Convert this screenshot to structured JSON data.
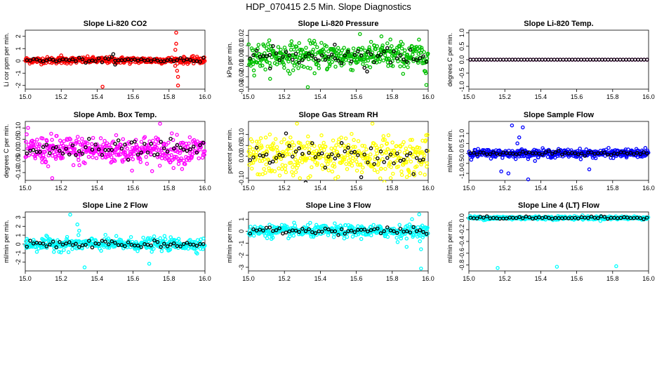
{
  "figure": {
    "title": "HDP_070415  2.5 Min. Slope Diagnostics"
  },
  "chart_data": [
    {
      "type": "scatter",
      "title": "Slope Li-820 CO2",
      "xlabel": "",
      "ylabel": "Li cor ppm per min.",
      "xlim": [
        15.0,
        16.0
      ],
      "ylim": [
        -2.3,
        2.5
      ],
      "xticks": [
        "15.0",
        "15.2",
        "15.4",
        "15.6",
        "15.8",
        "16.0"
      ],
      "yticks": [
        "-2",
        "-1",
        "0",
        "1",
        "2"
      ],
      "color": "#ff0000",
      "series": [
        {
          "name": "scan",
          "color": "#ff0000",
          "n": 420,
          "center": 0.05,
          "spread": 0.13,
          "outliers": [
            {
              "x": 15.43,
              "y": -2.1
            },
            {
              "x": 15.84,
              "y": 2.3
            },
            {
              "x": 15.84,
              "y": 1.4
            },
            {
              "x": 15.845,
              "y": -0.8
            },
            {
              "x": 15.85,
              "y": -1.3
            },
            {
              "x": 15.85,
              "y": -2.0
            },
            {
              "x": 15.835,
              "y": 0.9
            },
            {
              "x": 15.2,
              "y": 0.45
            }
          ]
        },
        {
          "name": "mean",
          "color": "#000000",
          "n": 55,
          "center": 0.05,
          "spread": 0.1,
          "outliers": [
            {
              "x": 15.49,
              "y": 0.55
            },
            {
              "x": 15.5,
              "y": -0.3
            }
          ]
        }
      ]
    },
    {
      "type": "scatter",
      "title": "Slope Li-820 Pressure",
      "xlabel": "",
      "ylabel": "kPa per min.",
      "xlim": [
        15.0,
        16.0
      ],
      "ylim": [
        -0.032,
        0.025
      ],
      "xticks": [
        "15.0",
        "15.2",
        "15.4",
        "15.6",
        "15.8",
        "16.0"
      ],
      "yticks": [
        "-0.03",
        "-0.02",
        "-0.01",
        "0.00",
        "0.01",
        "0.02"
      ],
      "color": "#00c000",
      "series": [
        {
          "name": "scan",
          "color": "#00c000",
          "n": 420,
          "center": 0.0,
          "spread": 0.0065,
          "outliers": [
            {
              "x": 15.33,
              "y": -0.03
            },
            {
              "x": 15.74,
              "y": 0.019
            },
            {
              "x": 15.99,
              "y": -0.028
            },
            {
              "x": 15.79,
              "y": 0.016
            }
          ]
        },
        {
          "name": "mean",
          "color": "#000000",
          "n": 55,
          "center": 0.0,
          "spread": 0.004,
          "outliers": [
            {
              "x": 15.66,
              "y": -0.015
            },
            {
              "x": 15.12,
              "y": -0.012
            },
            {
              "x": 15.48,
              "y": 0.011
            }
          ]
        }
      ]
    },
    {
      "type": "scatter",
      "title": "Slope Li-820 Temp.",
      "xlabel": "",
      "ylabel": "degrees C per min.",
      "xlim": [
        15.0,
        16.0
      ],
      "ylim": [
        -1.1,
        1.1
      ],
      "xticks": [
        "15.0",
        "15.2",
        "15.4",
        "15.6",
        "15.8",
        "16.0"
      ],
      "yticks": [
        "-1.0",
        "-0.5",
        "0.0",
        "0.5",
        "1.0"
      ],
      "color": "#ff00ff",
      "series": [
        {
          "name": "scan",
          "color": "#ff00ff",
          "n": 60,
          "center": 0.0,
          "spread": 0.0,
          "outliers": []
        },
        {
          "name": "mean",
          "color": "#000000",
          "n": 60,
          "center": 0.0,
          "spread": 0.0,
          "outliers": []
        }
      ]
    },
    {
      "type": "scatter",
      "title": "Slope Amb. Box Temp.",
      "xlabel": "",
      "ylabel": "degrees C per min.",
      "xlim": [
        15.0,
        16.0
      ],
      "ylim": [
        -0.135,
        0.13
      ],
      "xticks": [
        "15.0",
        "15.2",
        "15.4",
        "15.6",
        "15.8",
        "16.0"
      ],
      "yticks": [
        "-0.10",
        "-0.05",
        "0.00",
        "0.05",
        "0.10"
      ],
      "color": "#ff00ff",
      "series": [
        {
          "name": "scan",
          "color": "#ff00ff",
          "n": 420,
          "center": 0.0,
          "spread": 0.032,
          "outliers": [
            {
              "x": 15.15,
              "y": -0.125
            },
            {
              "x": 15.75,
              "y": 0.12
            }
          ]
        },
        {
          "name": "mean",
          "color": "#000000",
          "n": 55,
          "center": 0.0,
          "spread": 0.022,
          "outliers": []
        }
      ]
    },
    {
      "type": "scatter",
      "title": "Slope Gas Stream RH",
      "xlabel": "",
      "ylabel": "percent per min.",
      "xlim": [
        15.0,
        16.0
      ],
      "ylim": [
        -0.11,
        0.16
      ],
      "xticks": [
        "15.0",
        "15.2",
        "15.4",
        "15.6",
        "15.8",
        "16.0"
      ],
      "yticks": [
        "-0.10",
        "0.00",
        "0.05",
        "0.10"
      ],
      "color": "#ffff00",
      "series": [
        {
          "name": "scan",
          "color": "#ffff00",
          "n": 400,
          "center": 0.0,
          "spread": 0.045,
          "outliers": [
            {
              "x": 15.27,
              "y": 0.15
            },
            {
              "x": 15.69,
              "y": 0.15
            }
          ]
        },
        {
          "name": "mean",
          "color": "#000000",
          "n": 55,
          "center": 0.0,
          "spread": 0.04,
          "outliers": []
        }
      ]
    },
    {
      "type": "scatter",
      "title": "Slope Sample Flow",
      "xlabel": "",
      "ylabel": "ml/min per min.",
      "xlim": [
        15.0,
        16.0
      ],
      "ylim": [
        -1.35,
        1.6
      ],
      "xticks": [
        "15.0",
        "15.2",
        "15.4",
        "15.6",
        "15.8",
        "16.0"
      ],
      "yticks": [
        "-1.0",
        "-0.5",
        "0.0",
        "0.5",
        "1.0"
      ],
      "color": "#0000ff",
      "series": [
        {
          "name": "scan",
          "color": "#0000ff",
          "n": 420,
          "center": 0.0,
          "spread": 0.1,
          "outliers": [
            {
              "x": 15.24,
              "y": 1.4
            },
            {
              "x": 15.3,
              "y": 1.3
            },
            {
              "x": 15.22,
              "y": -1.0
            },
            {
              "x": 15.28,
              "y": 0.8
            },
            {
              "x": 15.33,
              "y": -1.3
            },
            {
              "x": 15.67,
              "y": -0.8
            },
            {
              "x": 15.18,
              "y": -0.9
            },
            {
              "x": 15.27,
              "y": 0.5
            }
          ]
        },
        {
          "name": "mean",
          "color": "#000000",
          "n": 55,
          "center": 0.0,
          "spread": 0.05,
          "outliers": []
        }
      ]
    },
    {
      "type": "scatter",
      "title": "Slope Line 2 Flow",
      "xlabel": "",
      "ylabel": "ml/min per min.",
      "xlim": [
        15.0,
        16.0
      ],
      "ylim": [
        -3.0,
        3.6
      ],
      "xticks": [
        "15.0",
        "15.2",
        "15.4",
        "15.6",
        "15.8",
        "16.0"
      ],
      "yticks": [
        "-2",
        "-1",
        "0",
        "1",
        "2",
        "3"
      ],
      "color": "#00ffff",
      "series": [
        {
          "name": "scan",
          "color": "#00ffff",
          "n": 380,
          "center": 0.0,
          "spread": 0.35,
          "outliers": [
            {
              "x": 15.25,
              "y": 3.3
            },
            {
              "x": 15.33,
              "y": -2.6
            },
            {
              "x": 15.69,
              "y": -2.2
            },
            {
              "x": 15.29,
              "y": 2.2
            },
            {
              "x": 15.3,
              "y": 1.5
            }
          ]
        },
        {
          "name": "mean",
          "color": "#000000",
          "n": 55,
          "center": 0.0,
          "spread": 0.2,
          "outliers": []
        }
      ]
    },
    {
      "type": "scatter",
      "title": "Slope Line 3 Flow",
      "xlabel": "",
      "ylabel": "ml/min per min.",
      "xlim": [
        15.0,
        16.0
      ],
      "ylim": [
        -3.3,
        1.6
      ],
      "xticks": [
        "15.0",
        "15.2",
        "15.4",
        "15.6",
        "15.8",
        "16.0"
      ],
      "yticks": [
        "-3",
        "-2",
        "-1",
        "0",
        "1"
      ],
      "color": "#00ffff",
      "series": [
        {
          "name": "scan",
          "color": "#00ffff",
          "n": 380,
          "center": 0.0,
          "spread": 0.25,
          "outliers": [
            {
              "x": 15.96,
              "y": -3.1
            },
            {
              "x": 15.95,
              "y": 1.4
            },
            {
              "x": 15.88,
              "y": -1.3
            },
            {
              "x": 15.96,
              "y": -1.5
            },
            {
              "x": 15.91,
              "y": 1.0
            },
            {
              "x": 15.83,
              "y": -0.9
            }
          ]
        },
        {
          "name": "mean",
          "color": "#000000",
          "n": 55,
          "center": 0.05,
          "spread": 0.15,
          "outliers": []
        }
      ]
    },
    {
      "type": "scatter",
      "title": "Slope Line 4 (LT) Flow",
      "xlabel": "",
      "ylabel": "ml/min per min.",
      "xlim": [
        15.0,
        16.0
      ],
      "ylim": [
        -0.9,
        0.1
      ],
      "xticks": [
        "15.0",
        "15.2",
        "15.4",
        "15.6",
        "15.8",
        "16.0"
      ],
      "yticks": [
        "-0.8",
        "-0.6",
        "-0.4",
        "-0.2",
        "0.0"
      ],
      "color": "#00ffff",
      "series": [
        {
          "name": "scan",
          "color": "#00ffff",
          "n": 360,
          "center": 0.0,
          "spread": 0.015,
          "outliers": [
            {
              "x": 15.16,
              "y": -0.85
            },
            {
              "x": 15.49,
              "y": -0.83
            },
            {
              "x": 15.82,
              "y": -0.82
            }
          ]
        },
        {
          "name": "mean",
          "color": "#000000",
          "n": 55,
          "center": 0.0,
          "spread": 0.01,
          "outliers": []
        }
      ]
    }
  ]
}
